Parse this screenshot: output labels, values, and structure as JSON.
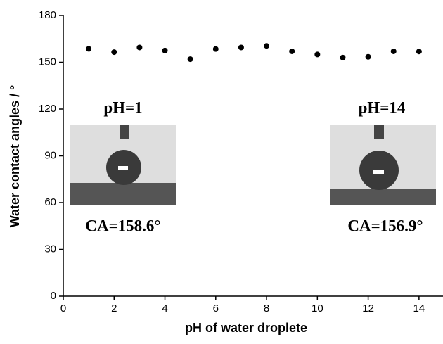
{
  "chart_data": {
    "type": "scatter",
    "x_label": "pH of water droplete",
    "y_label": "Water contact angles / °",
    "x": [
      1,
      2,
      3,
      4,
      5,
      6,
      7,
      8,
      9,
      10,
      11,
      12,
      13,
      14
    ],
    "values": [
      158.6,
      156.5,
      159.5,
      157.5,
      152,
      158.5,
      159.5,
      160.5,
      157,
      155,
      153,
      153.5,
      157,
      156.9
    ],
    "color": "#000000",
    "xlim": [
      0,
      15
    ],
    "xticks": [
      0,
      2,
      4,
      6,
      8,
      10,
      12,
      14
    ],
    "ylim": [
      0,
      180
    ],
    "yticks": [
      0,
      30,
      60,
      90,
      120,
      150,
      180
    ],
    "annotations": [
      "pH=1",
      "CA=158.6°",
      "pH=14",
      "CA=156.9°"
    ]
  }
}
